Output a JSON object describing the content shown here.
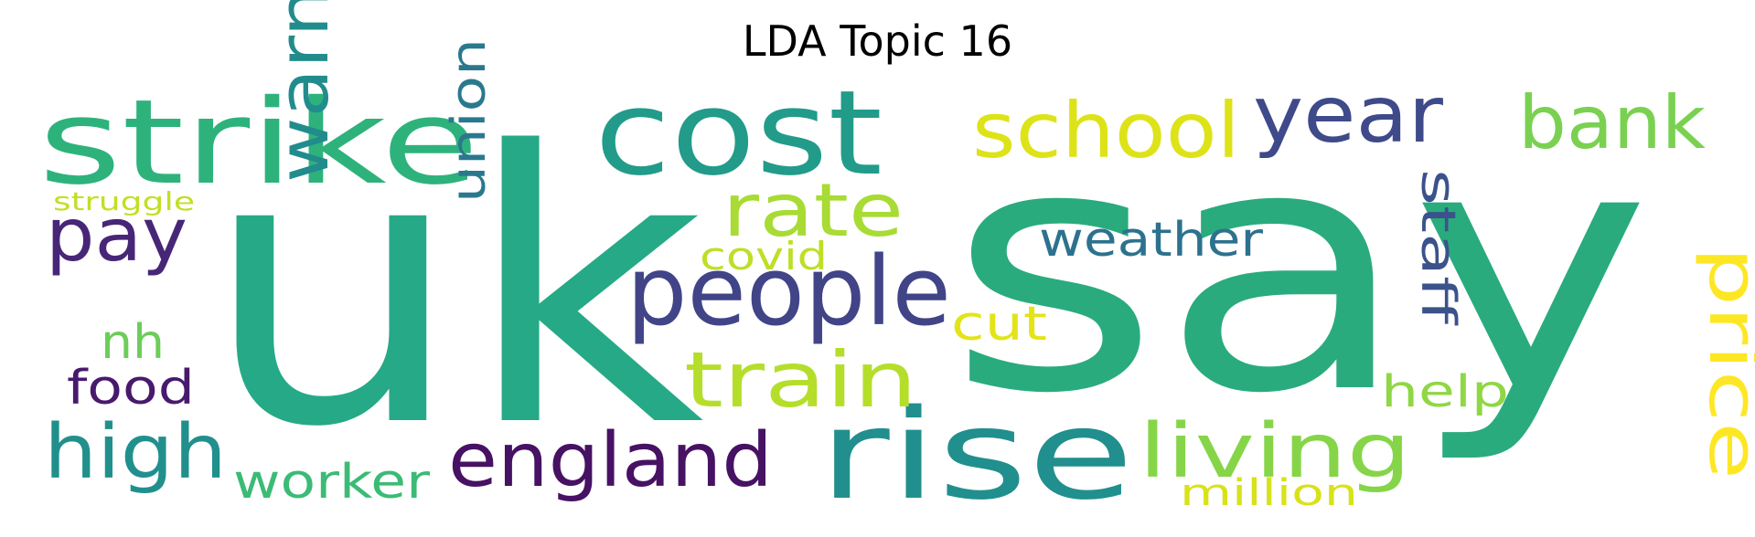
{
  "title": "LDA Topic 16",
  "words": [
    {
      "text": "say",
      "color": "#29ab7e"
    },
    {
      "text": "uk",
      "color": "#26a986"
    },
    {
      "text": "strike",
      "color": "#2eb27c"
    },
    {
      "text": "cost",
      "color": "#229b8a"
    },
    {
      "text": "rise",
      "color": "#218f8d"
    },
    {
      "text": "people",
      "color": "#414487"
    },
    {
      "text": "school",
      "color": "#dde318"
    },
    {
      "text": "year",
      "color": "#3e4a89"
    },
    {
      "text": "bank",
      "color": "#7ad151"
    },
    {
      "text": "rate",
      "color": "#a8db34"
    },
    {
      "text": "pay",
      "color": "#482677"
    },
    {
      "text": "warn",
      "color": "#228c8d"
    },
    {
      "text": "train",
      "color": "#b5de2b"
    },
    {
      "text": "england",
      "color": "#471164"
    },
    {
      "text": "high",
      "color": "#21908d"
    },
    {
      "text": "living",
      "color": "#86d549"
    },
    {
      "text": "price",
      "color": "#fde725"
    },
    {
      "text": "weather",
      "color": "#2c728e"
    },
    {
      "text": "staff",
      "color": "#3b528b"
    },
    {
      "text": "union",
      "color": "#2a788e"
    },
    {
      "text": "covid",
      "color": "#bddf26"
    },
    {
      "text": "cut",
      "color": "#e2e418"
    },
    {
      "text": "nh",
      "color": "#6ccd5a"
    },
    {
      "text": "food",
      "color": "#481a6c"
    },
    {
      "text": "help",
      "color": "#8fd744"
    },
    {
      "text": "worker",
      "color": "#3bbb75"
    },
    {
      "text": "million",
      "color": "#d8e219"
    },
    {
      "text": "struggle",
      "color": "#c2df23"
    }
  ]
}
